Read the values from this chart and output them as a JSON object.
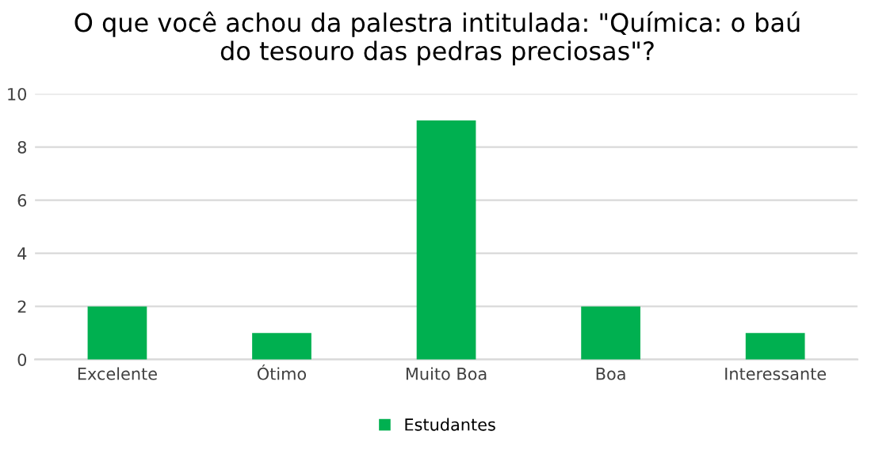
{
  "chart_data": {
    "type": "bar",
    "title": "O que você achou da palestra intitulada: \"Química: o baú\ndo tesouro das pedras preciosas\"?",
    "categories": [
      "Excelente",
      "Ótimo",
      "Muito Boa",
      "Boa",
      "Interessante"
    ],
    "series": [
      {
        "name": "Estudantes",
        "color": "#00b050",
        "values": [
          2,
          1,
          9,
          2,
          1
        ]
      }
    ],
    "ylim": [
      0,
      10
    ],
    "yticks": [
      0,
      2,
      4,
      6,
      8,
      10
    ],
    "grid": "y",
    "legend": "bottom"
  }
}
